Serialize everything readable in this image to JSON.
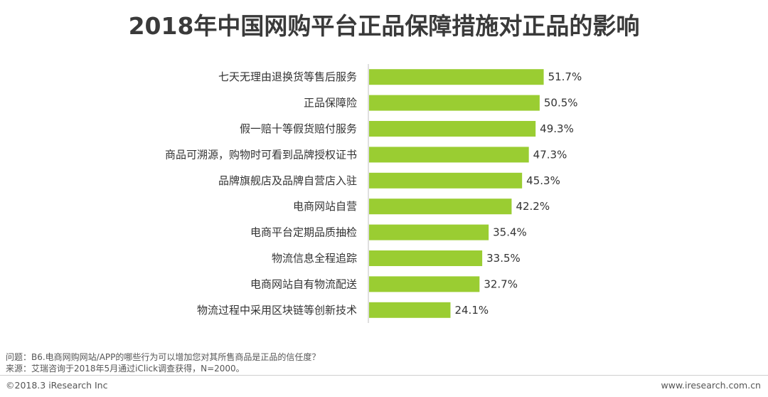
{
  "title": "2018年中国网购平台正品保障措施对正品的影响",
  "notes": {
    "question": "问题：B6.电商网购网站/APP的哪些行为可以增加您对其所售商品是正品的信任度？",
    "source": "来源：艾瑞咨询于2018年5月通过iClick调查获得，N=2000。"
  },
  "footer": {
    "copyright": "©2018.3 iResearch Inc",
    "website": "www.iresearch.com.cn"
  },
  "colors": {
    "bar": "#9acd32",
    "axis": "#bfbfbf"
  },
  "chart_data": {
    "type": "bar",
    "orientation": "horizontal",
    "categories": [
      "七天无理由退换货等售后服务",
      "正品保障险",
      "假一赔十等假货赔付服务",
      "商品可溯源，购物时可看到品牌授权证书",
      "品牌旗舰店及品牌自营店入驻",
      "电商网站自营",
      "电商平台定期品质抽检",
      "物流信息全程追踪",
      "电商网站自有物流配送",
      "物流过程中采用区块链等创新技术"
    ],
    "values": [
      51.7,
      50.5,
      49.3,
      47.3,
      45.3,
      42.2,
      35.4,
      33.5,
      32.7,
      24.1
    ],
    "labels": [
      "51.7%",
      "50.5%",
      "49.3%",
      "47.3%",
      "45.3%",
      "42.2%",
      "35.4%",
      "33.5%",
      "32.7%",
      "24.1%"
    ],
    "unit": "%",
    "grid": false,
    "legend": "none"
  }
}
